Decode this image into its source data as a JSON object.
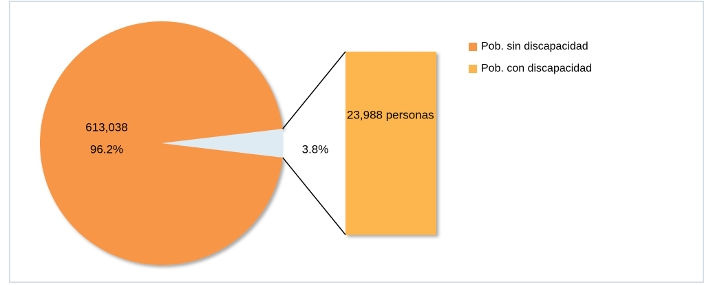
{
  "chart_data": {
    "type": "pie-of-bar",
    "categories": [
      "Pob. sin discapacidad",
      "Pob. con discapacidad"
    ],
    "values": [
      613038,
      23988
    ],
    "value_labels": [
      "613,038",
      "23,988 personas"
    ],
    "percentages": [
      96.2,
      3.8
    ],
    "percentage_labels": [
      "96.2%",
      "3.8%"
    ],
    "colors": [
      "#F79646",
      "#FDB54D"
    ],
    "split_slice_color": "#DEEBF2",
    "legend": "top-right"
  }
}
